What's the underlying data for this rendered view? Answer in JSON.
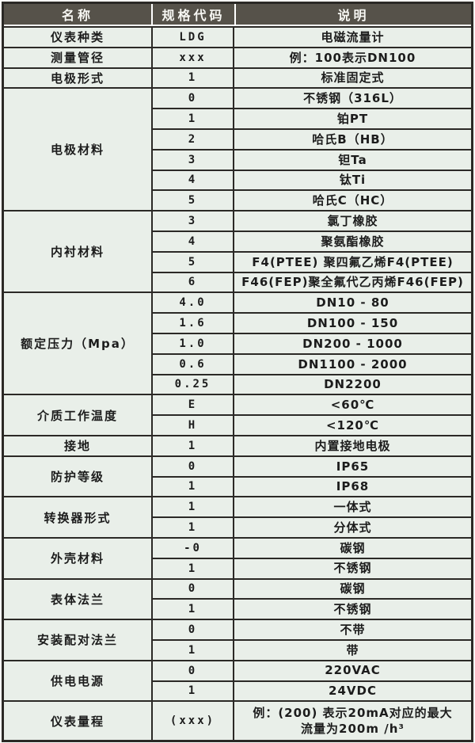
{
  "colors": {
    "header_bg": "#56524a",
    "header_text": "#f7f7f3",
    "cell_bg": "#e9efe9",
    "border": "#2b2926"
  },
  "table": {
    "headers": [
      "名称",
      "规格代码",
      "说明"
    ],
    "sections": [
      {
        "name": "仪表种类",
        "rows": [
          {
            "code": "LDG",
            "desc": "电磁流量计"
          }
        ]
      },
      {
        "name": "测量管径",
        "rows": [
          {
            "code": "xxx",
            "desc": "例：100表示DN100"
          }
        ]
      },
      {
        "name": "电极形式",
        "rows": [
          {
            "code": "1",
            "desc": "标准固定式"
          }
        ]
      },
      {
        "name": "电极材料",
        "rows": [
          {
            "code": "0",
            "desc": "不锈钢（316L）"
          },
          {
            "code": "1",
            "desc": "铂PT"
          },
          {
            "code": "2",
            "desc": "哈氏B（HB）"
          },
          {
            "code": "3",
            "desc": "钽Ta"
          },
          {
            "code": "4",
            "desc": "钛Ti"
          },
          {
            "code": "5",
            "desc": "哈氏C（HC）"
          }
        ]
      },
      {
        "name": "内衬材料",
        "rows": [
          {
            "code": "3",
            "desc": "氯丁橡胶"
          },
          {
            "code": "4",
            "desc": "聚氨酯橡胶"
          },
          {
            "code": "5",
            "desc": "F4(PTEE) 聚四氟乙烯F4(PTEE)"
          },
          {
            "code": "6",
            "desc": "F46(FEP)聚全氟代乙丙烯F46(FEP)"
          }
        ]
      },
      {
        "name": "额定压力（Mpa）",
        "rows": [
          {
            "code": "4.0",
            "desc": "DN10 - 80"
          },
          {
            "code": "1.6",
            "desc": "DN100 - 150"
          },
          {
            "code": "1.0",
            "desc": "DN200 - 1000"
          },
          {
            "code": "0.6",
            "desc": "DN1100 - 2000"
          },
          {
            "code": "0.25",
            "desc": "DN2200"
          }
        ]
      },
      {
        "name": "介质工作温度",
        "rows": [
          {
            "code": "E",
            "desc": "<60℃"
          },
          {
            "code": "H",
            "desc": "<120℃"
          }
        ]
      },
      {
        "name": "接地",
        "rows": [
          {
            "code": "1",
            "desc": "内置接地电极"
          }
        ]
      },
      {
        "name": "防护等级",
        "rows": [
          {
            "code": "0",
            "desc": "IP65"
          },
          {
            "code": "1",
            "desc": "IP68"
          }
        ]
      },
      {
        "name": "转换器形式",
        "rows": [
          {
            "code": "1",
            "desc": "一体式"
          },
          {
            "code": "1",
            "desc": "分体式"
          }
        ]
      },
      {
        "name": "外壳材料",
        "rows": [
          {
            "code": "-0",
            "desc": "碳钢"
          },
          {
            "code": "1",
            "desc": "不锈钢"
          }
        ]
      },
      {
        "name": "表体法兰",
        "rows": [
          {
            "code": "0",
            "desc": "碳钢"
          },
          {
            "code": "1",
            "desc": "不锈钢"
          }
        ]
      },
      {
        "name": "安装配对法兰",
        "rows": [
          {
            "code": "0",
            "desc": "不带"
          },
          {
            "code": "1",
            "desc": "带"
          }
        ]
      },
      {
        "name": "供电电源",
        "rows": [
          {
            "code": "0",
            "desc": "220VAC"
          },
          {
            "code": "1",
            "desc": "24VDC"
          }
        ]
      },
      {
        "name": "仪表量程",
        "rows": [
          {
            "code": "(xxx)",
            "desc": "例：(200) 表示20mA对应的最大\n流量为200m /h³"
          }
        ]
      }
    ]
  }
}
